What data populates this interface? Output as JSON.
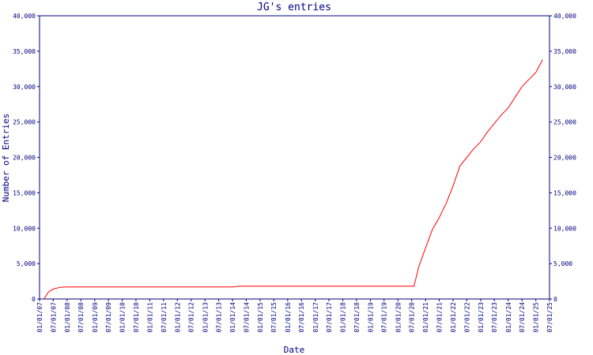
{
  "chart_data": {
    "type": "line",
    "title": "JG's entries",
    "x_label": "Date",
    "y_label": "Number of Entries",
    "x": [
      "03/01/07",
      "05/01/07",
      "07/01/07",
      "10/01/07",
      "01/01/08",
      "01/01/14",
      "04/01/14",
      "07/01/20",
      "08/01/20",
      "10/01/20",
      "01/01/21",
      "04/01/21",
      "07/01/21",
      "10/01/21",
      "01/01/22",
      "04/01/22",
      "07/01/22",
      "10/01/22",
      "01/01/23",
      "04/01/23",
      "07/01/23",
      "10/01/23",
      "01/01/24",
      "04/01/24",
      "07/01/24",
      "10/01/24",
      "01/01/25",
      "04/01/25"
    ],
    "series": [
      {
        "name": "JG",
        "color": "#ff0000",
        "values": [
          0,
          1000,
          1400,
          1650,
          1700,
          1700,
          1800,
          1800,
          1800,
          4500,
          7200,
          9800,
          11500,
          13500,
          16000,
          18800,
          20000,
          21200,
          22200,
          23600,
          24800,
          26000,
          27000,
          28500,
          30000,
          31000,
          32000,
          33800
        ]
      }
    ],
    "xlim": [
      "01/01/07",
      "07/01/25"
    ],
    "xticks": [
      "01/01/07",
      "07/01/07",
      "01/01/08",
      "07/01/08",
      "01/01/09",
      "07/01/09",
      "01/01/10",
      "07/01/10",
      "01/01/11",
      "07/01/11",
      "01/01/12",
      "07/01/12",
      "01/01/13",
      "07/01/13",
      "01/01/14",
      "07/01/14",
      "01/01/15",
      "07/01/15",
      "01/01/16",
      "07/01/16",
      "01/01/17",
      "07/01/17",
      "01/01/18",
      "07/01/18",
      "01/01/19",
      "07/01/19",
      "01/01/20",
      "07/01/20",
      "01/01/21",
      "07/01/21",
      "01/01/22",
      "07/01/22",
      "01/01/23",
      "07/01/23",
      "01/01/24",
      "07/01/24",
      "01/01/25",
      "07/01/25"
    ],
    "ylim": [
      0,
      40000
    ],
    "yticks": [
      0,
      {
        "value": 5000,
        "label": "5,000"
      },
      {
        "value": 10000,
        "label": "10,000"
      },
      {
        "value": 15000,
        "label": "15,000"
      },
      {
        "value": 20000,
        "label": "20,000"
      },
      {
        "value": 25000,
        "label": "25,000"
      },
      {
        "value": 30000,
        "label": "30,000"
      },
      {
        "value": 35000,
        "label": "35,000"
      },
      {
        "value": 40000,
        "label": "40,000"
      }
    ],
    "axis_color": "#000080"
  }
}
